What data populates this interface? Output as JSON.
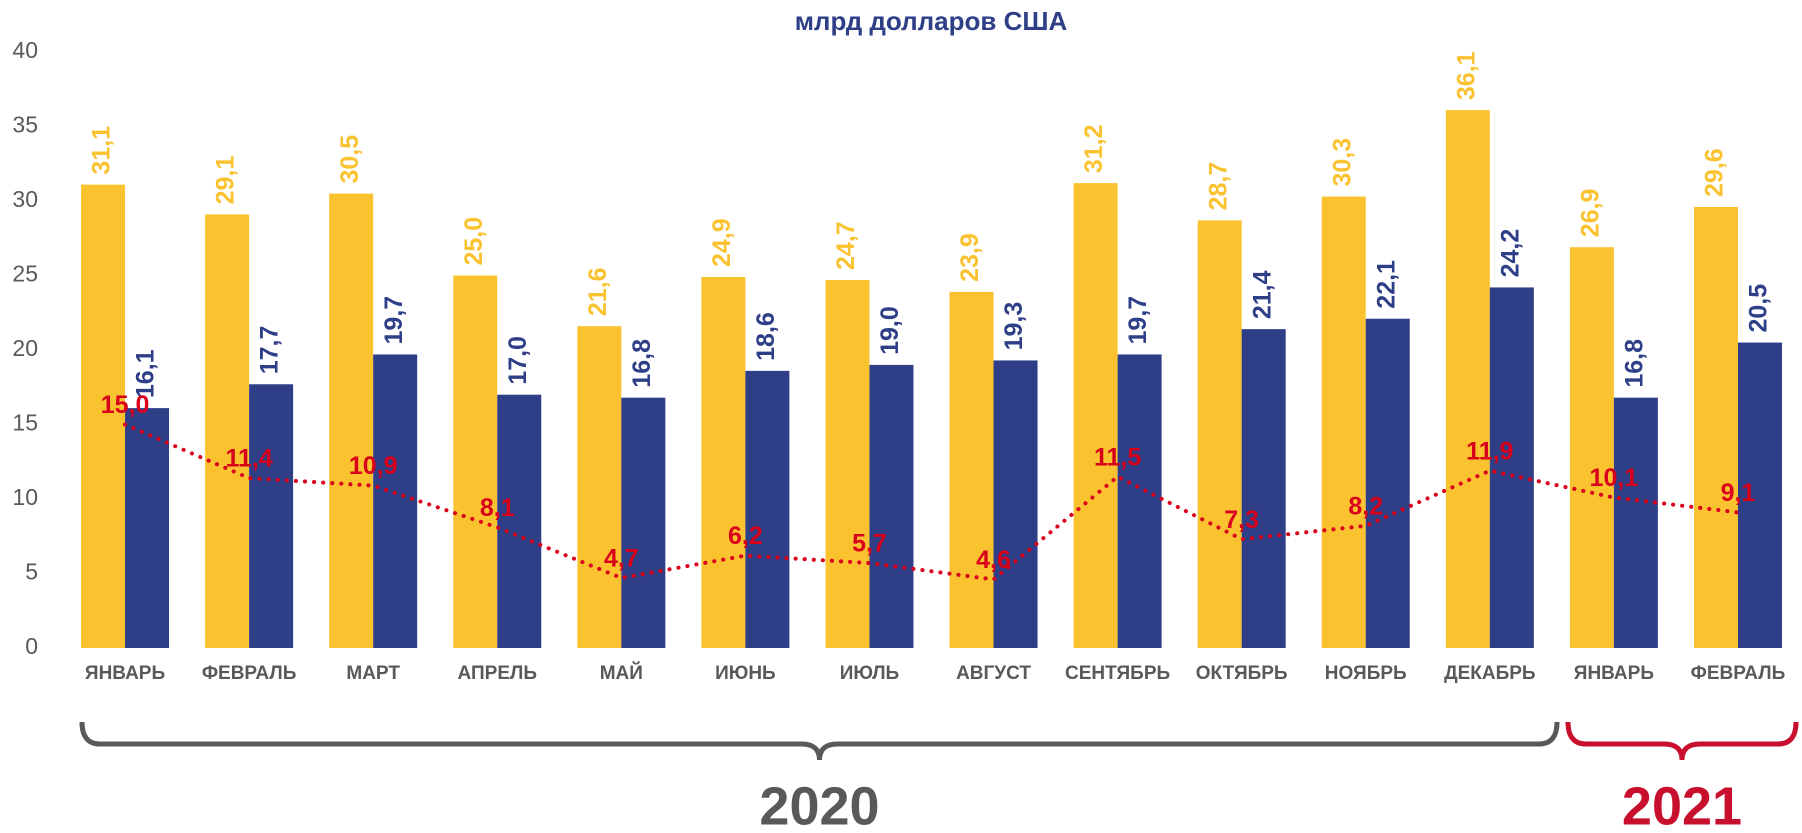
{
  "chart_data": {
    "type": "bar",
    "title": "млрд долларов США",
    "categories": [
      "ЯНВАРЬ",
      "ФЕВРАЛЬ",
      "МАРТ",
      "АПРЕЛЬ",
      "МАЙ",
      "ИЮНЬ",
      "ИЮЛЬ",
      "АВГУСТ",
      "СЕНТЯБРЬ",
      "ОКТЯБРЬ",
      "НОЯБРЬ",
      "ДЕКАБРЬ",
      "ЯНВАРЬ",
      "ФЕВРАЛЬ"
    ],
    "series": [
      {
        "type": "bar",
        "color": "#fbc22f",
        "values": [
          31.1,
          29.1,
          30.5,
          25.0,
          21.6,
          24.9,
          24.7,
          23.9,
          31.2,
          28.7,
          30.3,
          36.1,
          26.9,
          29.6
        ],
        "value_labels": [
          "31,1",
          "29,1",
          "30,5",
          "25,0",
          "21,6",
          "24,9",
          "24,7",
          "23,9",
          "31,2",
          "28,7",
          "30,3",
          "36,1",
          "26,9",
          "29,6"
        ]
      },
      {
        "type": "bar",
        "color": "#2e3f87",
        "values": [
          16.1,
          17.7,
          19.7,
          17.0,
          16.8,
          18.6,
          19.0,
          19.3,
          19.7,
          21.4,
          22.1,
          24.2,
          16.8,
          20.5
        ],
        "value_labels": [
          "16,1",
          "17,7",
          "19,7",
          "17,0",
          "16,8",
          "18,6",
          "19,0",
          "19,3",
          "19,7",
          "21,4",
          "22,1",
          "24,2",
          "16,8",
          "20,5"
        ]
      },
      {
        "type": "line",
        "color": "#d9001b",
        "dotted": true,
        "values": [
          15.0,
          11.4,
          10.9,
          8.1,
          4.7,
          6.2,
          5.7,
          4.6,
          11.5,
          7.3,
          8.2,
          11.9,
          10.1,
          9.1
        ],
        "value_labels": [
          "15,0",
          "11,4",
          "10,9",
          "8,1",
          "4,7",
          "6,2",
          "5,7",
          "4,6",
          "11,5",
          "7,3",
          "8,2",
          "11,9",
          "10,1",
          "9,1"
        ]
      }
    ],
    "ylim": [
      0,
      40
    ],
    "yticks": [
      0,
      5,
      10,
      15,
      20,
      25,
      30,
      35,
      40
    ],
    "grid": false,
    "annotations": [
      {
        "text": "2020",
        "color": "#595959"
      },
      {
        "text": "2021",
        "color": "#c8102e"
      }
    ]
  }
}
